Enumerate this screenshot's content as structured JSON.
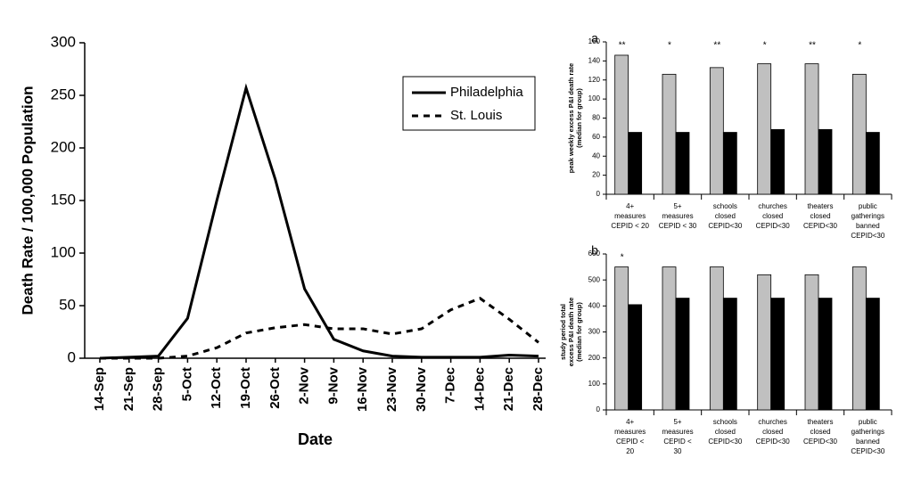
{
  "chart_data": [
    {
      "type": "line",
      "xlabel": "Date",
      "ylabel": "Death Rate / 100,000 Population",
      "categories": [
        "14-Sep",
        "21-Sep",
        "28-Sep",
        "5-Oct",
        "12-Oct",
        "19-Oct",
        "26-Oct",
        "2-Nov",
        "9-Nov",
        "16-Nov",
        "23-Nov",
        "30-Nov",
        "7-Dec",
        "14-Dec",
        "21-Dec",
        "28-Dec"
      ],
      "series": [
        {
          "name": "Philadelphia",
          "color": "#000000",
          "dash": "solid",
          "values": [
            0,
            1,
            2,
            38,
            150,
            257,
            170,
            66,
            18,
            7,
            2,
            1,
            1,
            1,
            3,
            2
          ]
        },
        {
          "name": "St. Louis",
          "color": "#000000",
          "dash": "dashed",
          "values": [
            0,
            0,
            0,
            2,
            10,
            24,
            29,
            32,
            28,
            28,
            23,
            28,
            46,
            57,
            37,
            15
          ]
        }
      ],
      "ylim": [
        0,
        300
      ],
      "yticks": [
        0,
        50,
        100,
        150,
        200,
        250,
        300
      ],
      "legend": "upper right"
    },
    {
      "type": "bar",
      "panel": "a",
      "ylabel": [
        "peak weekly excess P&I death rate",
        "(median for group)"
      ],
      "categories": [
        [
          "4+",
          "measures",
          "CEPID < 20"
        ],
        [
          "5+",
          "measures",
          "CEPID < 30"
        ],
        [
          "schools",
          "closed",
          "CEPID<30"
        ],
        [
          "churches",
          "closed",
          "CEPID<30"
        ],
        [
          "theaters",
          "closed",
          "CEPID<30"
        ],
        [
          "public",
          "gatherings",
          "banned",
          "CEPID<30"
        ]
      ],
      "series": [
        {
          "color": "#c0c0c0",
          "values": [
            146,
            126,
            133,
            137,
            137,
            126
          ]
        },
        {
          "color": "#000000",
          "values": [
            65,
            65,
            65,
            68,
            68,
            65
          ]
        }
      ],
      "annotations": [
        "**",
        "*",
        "**",
        "*",
        "**",
        "*"
      ],
      "ylim": [
        0,
        160
      ],
      "yticks": [
        0,
        20,
        40,
        60,
        80,
        100,
        120,
        140,
        160
      ]
    },
    {
      "type": "bar",
      "panel": "b",
      "ylabel": [
        "study period total",
        "excess P&I death rate",
        "(median for group)"
      ],
      "categories": [
        [
          "4+",
          "measures",
          "CEPID <",
          "20"
        ],
        [
          "5+",
          "measures",
          "CEPID <",
          "30"
        ],
        [
          "schools",
          "closed",
          "CEPID<30"
        ],
        [
          "churches",
          "closed",
          "CEPID<30"
        ],
        [
          "theaters",
          "closed",
          "CEPID<30"
        ],
        [
          "public",
          "gatherings",
          "banned",
          "CEPID<30"
        ]
      ],
      "series": [
        {
          "color": "#c0c0c0",
          "values": [
            550,
            550,
            550,
            520,
            520,
            550
          ]
        },
        {
          "color": "#000000",
          "values": [
            405,
            430,
            430,
            430,
            430,
            430
          ]
        }
      ],
      "annotations": [
        "*",
        null,
        null,
        null,
        null,
        null
      ],
      "ylim": [
        0,
        600
      ],
      "yticks": [
        0,
        100,
        200,
        300,
        400,
        500,
        600
      ]
    }
  ]
}
